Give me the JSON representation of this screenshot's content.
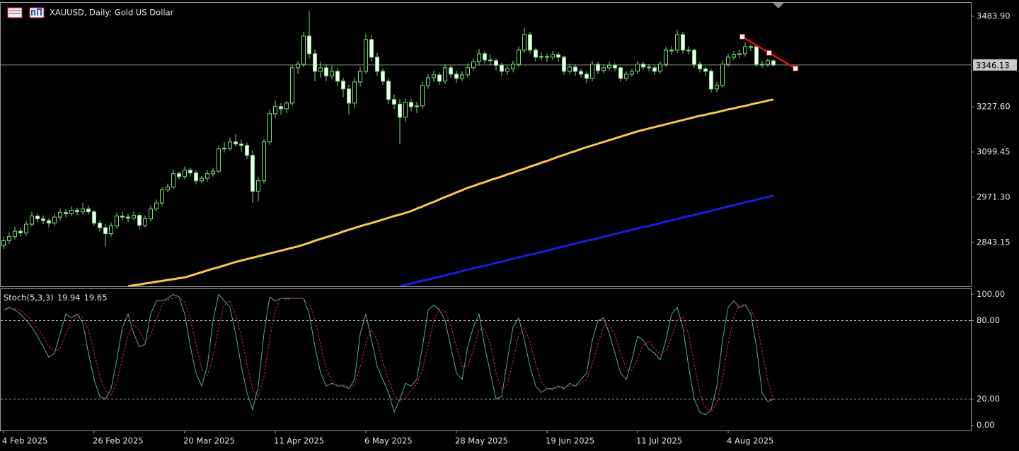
{
  "chart_data": {
    "type": "candlestick",
    "title": "XAUUSD, Daily:  Gold US Dollar",
    "categories": [
      "4 Feb 2025",
      null,
      null,
      null,
      null,
      null,
      null,
      null,
      null,
      null,
      null,
      null,
      null,
      null,
      null,
      null,
      "26 Feb 2025",
      null,
      null,
      null,
      null,
      null,
      null,
      null,
      null,
      null,
      null,
      null,
      null,
      null,
      null,
      null,
      "20 Mar 2025",
      null,
      null,
      null,
      null,
      null,
      null,
      null,
      null,
      null,
      null,
      null,
      null,
      null,
      null,
      null,
      "11 Apr 2025",
      null,
      null,
      null,
      null,
      null,
      null,
      null,
      null,
      null,
      null,
      null,
      null,
      null,
      null,
      null,
      "6 May 2025",
      null,
      null,
      null,
      null,
      null,
      null,
      null,
      null,
      null,
      null,
      null,
      null,
      null,
      null,
      null,
      "28 May 2025",
      null,
      null,
      null,
      null,
      null,
      null,
      null,
      null,
      null,
      null,
      null,
      null,
      null,
      null,
      null,
      "19 Jun 2025",
      null,
      null,
      null,
      null,
      null,
      null,
      null,
      null,
      null,
      null,
      null,
      null,
      null,
      null,
      null,
      "11 Jul 2025",
      null,
      null,
      null,
      null,
      null,
      null,
      null,
      null,
      null,
      null,
      null,
      null,
      null,
      null,
      null,
      "4 Aug 2025",
      null,
      null,
      null,
      null,
      null,
      null,
      null,
      null
    ],
    "open": [
      2835,
      2848,
      2860,
      2875,
      2870,
      2895,
      2918,
      2910,
      2905,
      2898,
      2915,
      2928,
      2925,
      2934,
      2930,
      2938,
      2930,
      2898,
      2885,
      2868,
      2890,
      2918,
      2915,
      2912,
      2920,
      2892,
      2910,
      2938,
      2955,
      2992,
      3000,
      3038,
      3030,
      3048,
      3040,
      3018,
      3025,
      3038,
      3045,
      3108,
      3110,
      3128,
      3122,
      3118,
      3090,
      2988,
      3018,
      3128,
      3208,
      3228,
      3222,
      3238,
      3338,
      3348,
      3428,
      3378,
      3328,
      3338,
      3315,
      3328,
      3300,
      3278,
      3238,
      3298,
      3328,
      3418,
      3368,
      3328,
      3300,
      3248,
      3235,
      3198,
      3240,
      3228,
      3230,
      3288,
      3310,
      3318,
      3300,
      3338,
      3320,
      3308,
      3318,
      3338,
      3355,
      3378,
      3360,
      3358,
      3345,
      3328,
      3335,
      3348,
      3388,
      3432,
      3388,
      3368,
      3370,
      3368,
      3375,
      3368,
      3328,
      3340,
      3328,
      3320,
      3308,
      3348,
      3330,
      3338,
      3345,
      3338,
      3308,
      3320,
      3328,
      3348,
      3340,
      3338,
      3328,
      3348,
      3388,
      3388,
      3432,
      3388,
      3388,
      3348,
      3335,
      3328,
      3278,
      3288,
      3348,
      3368,
      3375,
      3378,
      3398,
      3398,
      3348,
      3348,
      3358
    ],
    "high": [
      2860,
      2872,
      2888,
      2885,
      2905,
      2930,
      2925,
      2920,
      2912,
      2925,
      2940,
      2938,
      2945,
      2942,
      2955,
      2948,
      2935,
      2905,
      2895,
      2900,
      2928,
      2930,
      2925,
      2932,
      2928,
      2920,
      2948,
      2965,
      3000,
      3010,
      3050,
      3045,
      3058,
      3055,
      3048,
      3032,
      3048,
      3055,
      3118,
      3128,
      3140,
      3150,
      3135,
      3125,
      3105,
      3030,
      3135,
      3220,
      3245,
      3238,
      3245,
      3345,
      3358,
      3440,
      3500,
      3390,
      3355,
      3348,
      3345,
      3338,
      3310,
      3290,
      3310,
      3340,
      3435,
      3430,
      3380,
      3335,
      3310,
      3262,
      3250,
      3252,
      3250,
      3242,
      3298,
      3320,
      3330,
      3325,
      3348,
      3345,
      3330,
      3328,
      3350,
      3365,
      3392,
      3385,
      3375,
      3365,
      3352,
      3345,
      3358,
      3398,
      3452,
      3440,
      3395,
      3382,
      3378,
      3385,
      3382,
      3372,
      3350,
      3348,
      3335,
      3328,
      3358,
      3355,
      3348,
      3355,
      3350,
      3342,
      3328,
      3335,
      3358,
      3355,
      3348,
      3345,
      3355,
      3398,
      3400,
      3445,
      3440,
      3398,
      3392,
      3355,
      3342,
      3335,
      3298,
      3358,
      3378,
      3385,
      3388,
      3410,
      3405,
      3402,
      3358,
      3365,
      3362
    ],
    "low": [
      2825,
      2840,
      2852,
      2860,
      2862,
      2888,
      2900,
      2895,
      2885,
      2890,
      2905,
      2915,
      2918,
      2920,
      2922,
      2922,
      2890,
      2875,
      2832,
      2860,
      2882,
      2905,
      2900,
      2905,
      2880,
      2885,
      2902,
      2930,
      2948,
      2985,
      2995,
      3020,
      3022,
      3030,
      3008,
      3010,
      3015,
      3030,
      3040,
      3098,
      3102,
      3115,
      3100,
      3080,
      2955,
      2960,
      3010,
      3120,
      3195,
      3205,
      3210,
      3230,
      3320,
      3340,
      3365,
      3300,
      3310,
      3300,
      3305,
      3285,
      3255,
      3205,
      3225,
      3285,
      3320,
      3355,
      3315,
      3290,
      3235,
      3220,
      3122,
      3185,
      3215,
      3210,
      3222,
      3278,
      3298,
      3290,
      3292,
      3310,
      3295,
      3300,
      3310,
      3330,
      3345,
      3350,
      3345,
      3330,
      3315,
      3318,
      3325,
      3340,
      3380,
      3378,
      3355,
      3358,
      3355,
      3360,
      3355,
      3318,
      3320,
      3315,
      3310,
      3295,
      3300,
      3320,
      3322,
      3330,
      3328,
      3298,
      3300,
      3312,
      3320,
      3332,
      3328,
      3318,
      3320,
      3340,
      3375,
      3380,
      3378,
      3375,
      3338,
      3325,
      3315,
      3268,
      3268,
      3280,
      3340,
      3360,
      3365,
      3370,
      3385,
      3340,
      3338,
      3340,
      3340
    ],
    "close": [
      2848,
      2860,
      2875,
      2870,
      2895,
      2918,
      2910,
      2905,
      2898,
      2915,
      2928,
      2925,
      2934,
      2930,
      2938,
      2930,
      2898,
      2885,
      2868,
      2890,
      2918,
      2915,
      2912,
      2920,
      2892,
      2910,
      2938,
      2955,
      2992,
      3000,
      3038,
      3030,
      3048,
      3040,
      3018,
      3025,
      3038,
      3045,
      3108,
      3110,
      3128,
      3122,
      3118,
      3090,
      2988,
      3018,
      3128,
      3208,
      3228,
      3222,
      3238,
      3338,
      3348,
      3428,
      3378,
      3328,
      3338,
      3315,
      3328,
      3300,
      3278,
      3238,
      3298,
      3328,
      3418,
      3368,
      3328,
      3300,
      3248,
      3235,
      3198,
      3240,
      3228,
      3230,
      3288,
      3310,
      3318,
      3300,
      3338,
      3320,
      3308,
      3318,
      3338,
      3355,
      3378,
      3360,
      3358,
      3345,
      3328,
      3335,
      3348,
      3388,
      3432,
      3388,
      3368,
      3370,
      3368,
      3375,
      3368,
      3328,
      3340,
      3328,
      3320,
      3308,
      3348,
      3330,
      3338,
      3345,
      3338,
      3308,
      3320,
      3328,
      3348,
      3340,
      3338,
      3328,
      3348,
      3388,
      3388,
      3432,
      3388,
      3388,
      3348,
      3335,
      3328,
      3278,
      3288,
      3348,
      3368,
      3375,
      3378,
      3398,
      3398,
      3348,
      3348,
      3358,
      3346
    ],
    "up_color": "#000000",
    "down_color": "#f0fff0",
    "wick_color": "#7cdc7c",
    "series": [
      {
        "color": "#f7c948",
        "values": [
          null,
          null,
          null,
          null,
          null,
          null,
          null,
          null,
          null,
          null,
          null,
          null,
          null,
          null,
          null,
          null,
          null,
          null,
          null,
          null,
          null,
          null,
          2719,
          2722,
          2724,
          2727,
          2729,
          2732,
          2734,
          2737,
          2739,
          2742,
          2744,
          2749,
          2754,
          2759,
          2764,
          2769,
          2773,
          2778,
          2783,
          2788,
          2792,
          2796,
          2800,
          2804,
          2808,
          2812,
          2816,
          2820,
          2824,
          2828,
          2832,
          2837,
          2842,
          2848,
          2853,
          2858,
          2863,
          2868,
          2874,
          2879,
          2884,
          2889,
          2894,
          2898,
          2903,
          2908,
          2913,
          2918,
          2922,
          2927,
          2932,
          2939,
          2945,
          2952,
          2958,
          2965,
          2972,
          2978,
          2985,
          2991,
          2998,
          3003,
          3009,
          3014,
          3020,
          3025,
          3030,
          3036,
          3041,
          3047,
          3052,
          3058,
          3063,
          3069,
          3074,
          3080,
          3086,
          3091,
          3097,
          3102,
          3108,
          3113,
          3118,
          3123,
          3128,
          3133,
          3138,
          3143,
          3148,
          3153,
          3158,
          3162,
          3166,
          3170,
          3174,
          3178,
          3182,
          3186,
          3190,
          3194,
          3198,
          3202,
          3205,
          3209,
          3212,
          3216,
          3220,
          3223,
          3227,
          3230,
          3234,
          3238,
          3241,
          3245,
          3248
        ]
      },
      {
        "color": "#1c1cdc",
        "values": [
          null,
          null,
          null,
          null,
          null,
          null,
          null,
          null,
          null,
          null,
          null,
          null,
          null,
          null,
          null,
          null,
          null,
          null,
          null,
          null,
          null,
          null,
          null,
          null,
          null,
          null,
          null,
          null,
          null,
          null,
          null,
          null,
          null,
          null,
          null,
          null,
          null,
          null,
          null,
          null,
          null,
          null,
          null,
          null,
          null,
          null,
          null,
          null,
          null,
          null,
          null,
          null,
          null,
          null,
          null,
          null,
          null,
          null,
          null,
          null,
          null,
          null,
          null,
          null,
          null,
          null,
          null,
          null,
          null,
          null,
          2719,
          2723,
          2727,
          2731,
          2735,
          2738,
          2742,
          2746,
          2750,
          2754,
          2758,
          2762,
          2766,
          2770,
          2774,
          2777,
          2781,
          2785,
          2789,
          2793,
          2797,
          2801,
          2805,
          2809,
          2812,
          2816,
          2820,
          2824,
          2828,
          2832,
          2836,
          2840,
          2844,
          2848,
          2851,
          2855,
          2859,
          2863,
          2867,
          2871,
          2875,
          2879,
          2883,
          2887,
          2890,
          2894,
          2898,
          2902,
          2906,
          2910,
          2914,
          2918,
          2921,
          2925,
          2929,
          2933,
          2937,
          2941,
          2945,
          2949,
          2953,
          2957,
          2960,
          2964,
          2968,
          2972,
          2976
        ]
      }
    ],
    "ylim": [
      2719,
      3522
    ],
    "yticks": [
      {
        "value": 3483.9,
        "label": "3483.90"
      },
      {
        "value": 3227.6,
        "label": "3227.60"
      },
      3099.45,
      {
        "value": 2971.3,
        "label": "2971.30"
      },
      2843.15
    ],
    "current_price": 3346.13,
    "trendline": {
      "color": "#e01010",
      "x": [
        130.5,
        135.25,
        139.9
      ],
      "y": [
        3426,
        3380,
        3336
      ]
    },
    "indicator": {
      "type": "line",
      "title": "Stoch(5,3,3)",
      "series": [
        {
          "color": "#5fa8a0",
          "values": [
            88,
            90,
            88,
            85,
            80,
            75,
            68,
            60,
            52,
            55,
            70,
            85,
            82,
            85,
            78,
            55,
            35,
            22,
            20,
            28,
            50,
            75,
            85,
            70,
            60,
            62,
            85,
            95,
            95,
            97,
            100,
            98,
            85,
            60,
            40,
            30,
            45,
            80,
            100,
            95,
            90,
            70,
            45,
            25,
            12,
            30,
            70,
            98,
            95,
            97,
            97,
            97,
            97,
            97,
            85,
            60,
            40,
            30,
            32,
            30,
            30,
            28,
            35,
            70,
            85,
            65,
            45,
            35,
            25,
            10,
            20,
            32,
            30,
            35,
            60,
            88,
            92,
            88,
            80,
            60,
            40,
            35,
            60,
            75,
            85,
            60,
            40,
            20,
            22,
            50,
            75,
            82,
            65,
            45,
            30,
            25,
            28,
            28,
            30,
            28,
            32,
            30,
            35,
            40,
            65,
            80,
            82,
            70,
            55,
            40,
            35,
            50,
            68,
            65,
            58,
            55,
            50,
            65,
            85,
            90,
            75,
            45,
            20,
            10,
            8,
            12,
            30,
            65,
            90,
            95,
            90,
            92,
            85,
            60,
            25,
            18,
            19.94
          ]
        },
        {
          "color": "#d42a2a",
          "dashed": true,
          "values": [
            88,
            89,
            89,
            88,
            84,
            80,
            74,
            68,
            60,
            56,
            59,
            70,
            79,
            84,
            82,
            73,
            56,
            37,
            26,
            23,
            33,
            51,
            70,
            77,
            72,
            64,
            69,
            81,
            92,
            96,
            97,
            98,
            94,
            81,
            62,
            43,
            38,
            52,
            75,
            92,
            95,
            85,
            68,
            47,
            27,
            22,
            37,
            66,
            88,
            97,
            96,
            97,
            97,
            97,
            93,
            81,
            62,
            43,
            34,
            31,
            31,
            29,
            31,
            44,
            63,
            73,
            65,
            48,
            35,
            23,
            18,
            21,
            27,
            32,
            42,
            61,
            80,
            89,
            87,
            76,
            60,
            45,
            45,
            57,
            73,
            73,
            62,
            40,
            27,
            31,
            49,
            69,
            74,
            64,
            47,
            33,
            28,
            27,
            29,
            29,
            30,
            30,
            32,
            35,
            47,
            62,
            76,
            77,
            69,
            55,
            43,
            42,
            51,
            61,
            64,
            59,
            54,
            57,
            67,
            80,
            83,
            70,
            47,
            25,
            13,
            10,
            17,
            36,
            62,
            83,
            92,
            92,
            89,
            79,
            57,
            34,
            19.65
          ]
        }
      ],
      "ylim": [
        -4,
        104
      ],
      "yticks": [
        {
          "value": 100,
          "label": "100.00"
        },
        {
          "value": 80,
          "label": "80.00"
        },
        {
          "value": 20,
          "label": "20.00"
        },
        {
          "value": 0,
          "label": "0.00"
        }
      ]
    }
  }
}
